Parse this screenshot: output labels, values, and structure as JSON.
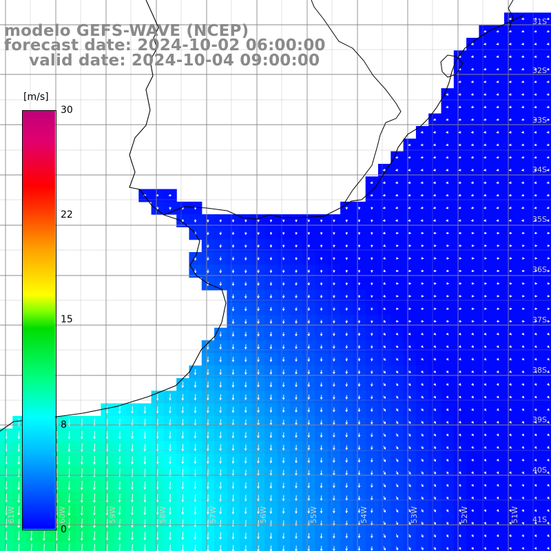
{
  "title": {
    "line1": "modelo GEFS-WAVE (NCEP)",
    "line2": "forecast date: 2024-10-02 06:00:00",
    "line3": "valid date: 2024-10-04 09:00:00"
  },
  "colorbar": {
    "unit": "[m/s]",
    "ticks": [
      "30",
      "22",
      "15",
      "8",
      "0"
    ],
    "min": 0,
    "max": 30,
    "colors": [
      "#0000ff",
      "#00b8ff",
      "#00ffff",
      "#00ff80",
      "#00dd00",
      "#80ff00",
      "#ffff00",
      "#ffa000",
      "#ff3000",
      "#ff0000",
      "#e00070",
      "#c0007a"
    ]
  },
  "map": {
    "lat_labels": [
      "31S",
      "32S",
      "33S",
      "34S",
      "35S",
      "36S",
      "37S",
      "38S",
      "39S",
      "40S",
      "41S"
    ],
    "lon_labels": [
      "61W",
      "60W",
      "59W",
      "58W",
      "57W",
      "56W",
      "55W",
      "54W",
      "53W",
      "52W",
      "51W"
    ],
    "land_color": "#ffffff",
    "grid_color": "#888888",
    "arrow_color": "#ffffff"
  }
}
